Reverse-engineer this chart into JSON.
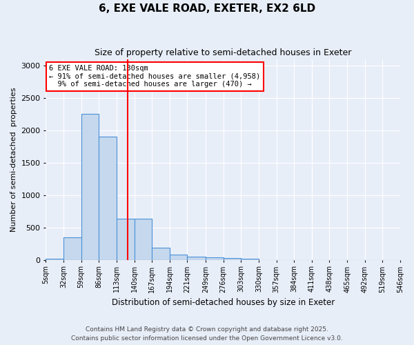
{
  "title": "6, EXE VALE ROAD, EXETER, EX2 6LD",
  "subtitle": "Size of property relative to semi-detached houses in Exeter",
  "xlabel": "Distribution of semi-detached houses by size in Exeter",
  "ylabel": "Number of semi-detached  properties",
  "property_size": 130,
  "property_label": "6 EXE VALE ROAD: 130sqm",
  "pct_smaller": 91,
  "pct_larger": 9,
  "count_smaller": 4958,
  "count_larger": 470,
  "bin_labels": [
    "5sqm",
    "32sqm",
    "59sqm",
    "86sqm",
    "113sqm",
    "140sqm",
    "167sqm",
    "194sqm",
    "221sqm",
    "249sqm",
    "276sqm",
    "303sqm",
    "330sqm",
    "357sqm",
    "384sqm",
    "411sqm",
    "438sqm",
    "465sqm",
    "492sqm",
    "519sqm",
    "546sqm"
  ],
  "bin_edges": [
    5,
    32,
    59,
    86,
    113,
    140,
    167,
    194,
    221,
    249,
    276,
    303,
    330,
    357,
    384,
    411,
    438,
    465,
    492,
    519,
    546
  ],
  "bar_values": [
    20,
    350,
    2250,
    1900,
    640,
    640,
    185,
    80,
    45,
    40,
    30,
    20,
    0,
    0,
    0,
    0,
    0,
    0,
    0,
    0
  ],
  "bar_color": "#c5d8ed",
  "bar_edge_color": "#4a90d9",
  "red_line_x": 130,
  "ylim": [
    0,
    3100
  ],
  "yticks": [
    0,
    500,
    1000,
    1500,
    2000,
    2500,
    3000
  ],
  "background_color": "#e8eef8",
  "footer_line1": "Contains HM Land Registry data © Crown copyright and database right 2025.",
  "footer_line2": "Contains public sector information licensed under the Open Government Licence v3.0."
}
